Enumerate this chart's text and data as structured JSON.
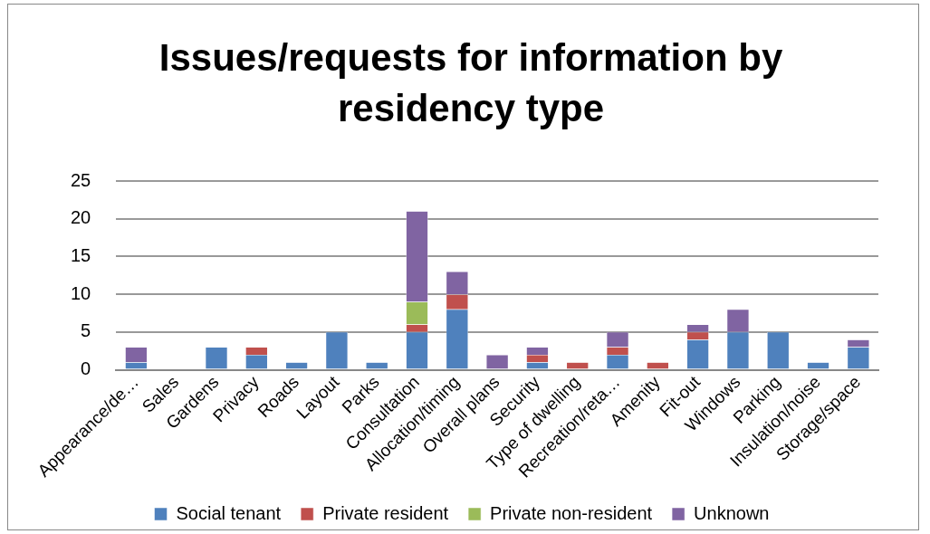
{
  "chart_data": {
    "type": "bar",
    "title": "Issues/requests for information by residency type",
    "categories": [
      "Appearance/de…",
      "Sales",
      "Gardens",
      "Privacy",
      "Roads",
      "Layout",
      "Parks",
      "Consultation",
      "Allocation/timing",
      "Overall plans",
      "Security",
      "Type of dwelling",
      "Recreation/reta…",
      "Amenity",
      "Fit-out",
      "Windows",
      "Parking",
      "Insulation/noise",
      "Storage/space"
    ],
    "series": [
      {
        "name": "Social tenant",
        "color": "#4f81bd",
        "values": [
          1,
          0,
          3,
          2,
          1,
          5,
          1,
          5,
          8,
          0,
          1,
          0,
          2,
          0,
          4,
          5,
          5,
          1,
          3
        ]
      },
      {
        "name": "Private resident",
        "color": "#c0504d",
        "values": [
          0,
          0,
          0,
          1,
          0,
          0,
          0,
          1,
          2,
          0,
          1,
          1,
          1,
          1,
          1,
          0,
          0,
          0,
          0
        ]
      },
      {
        "name": "Private non-resident",
        "color": "#9bbb59",
        "values": [
          0,
          0,
          0,
          0,
          0,
          0,
          0,
          3,
          0,
          0,
          0,
          0,
          0,
          0,
          0,
          0,
          0,
          0,
          0
        ]
      },
      {
        "name": "Unknown",
        "color": "#8064a2",
        "values": [
          2,
          0,
          0,
          0,
          0,
          0,
          0,
          12,
          3,
          2,
          1,
          0,
          2,
          0,
          1,
          3,
          0,
          0,
          1
        ]
      }
    ],
    "stacked": true,
    "ylim": [
      0,
      25
    ],
    "yticks": [
      0,
      5,
      10,
      15,
      20,
      25
    ],
    "grid": "y",
    "legend": "bottom"
  }
}
